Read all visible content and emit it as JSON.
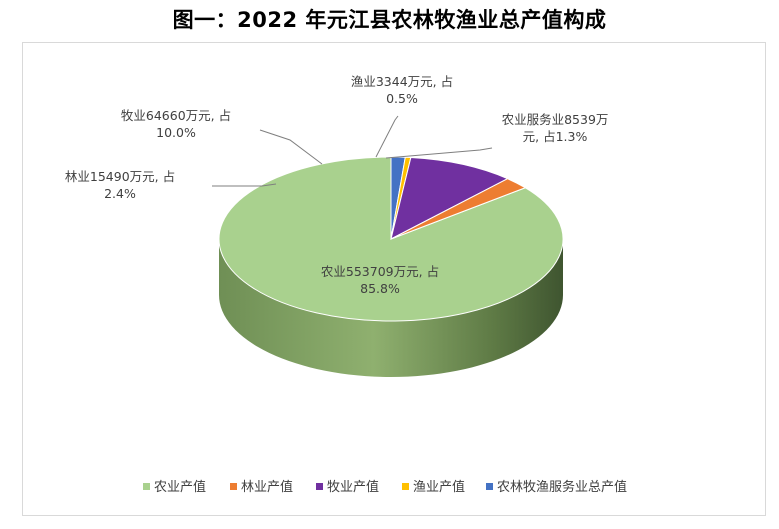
{
  "chart_data": {
    "type": "pie",
    "title": "图一：2022 年元江县农林牧渔业总产值构成",
    "categories": [
      "农业产值",
      "林业产值",
      "牧业产值",
      "渔业产值",
      "农林牧渔服务业总产值"
    ],
    "values": [
      553709,
      15490,
      64660,
      3344,
      8539
    ],
    "percentages": [
      85.8,
      2.4,
      10.0,
      0.5,
      1.3
    ],
    "colors": [
      "#a9d18e",
      "#ed7d31",
      "#7030a0",
      "#ffc000",
      "#4472c4"
    ],
    "legend_position": "bottom",
    "three_d": true,
    "data_labels": [
      [
        "农业553709万元, 占",
        "85.8%"
      ],
      [
        "林业15490万元, 占",
        "2.4%"
      ],
      [
        "牧业64660万元, 占",
        "10.0%"
      ],
      [
        "渔业3344万元, 占",
        "0.5%"
      ],
      [
        "农业服务业8539万",
        "元, 占1.3%"
      ]
    ]
  }
}
